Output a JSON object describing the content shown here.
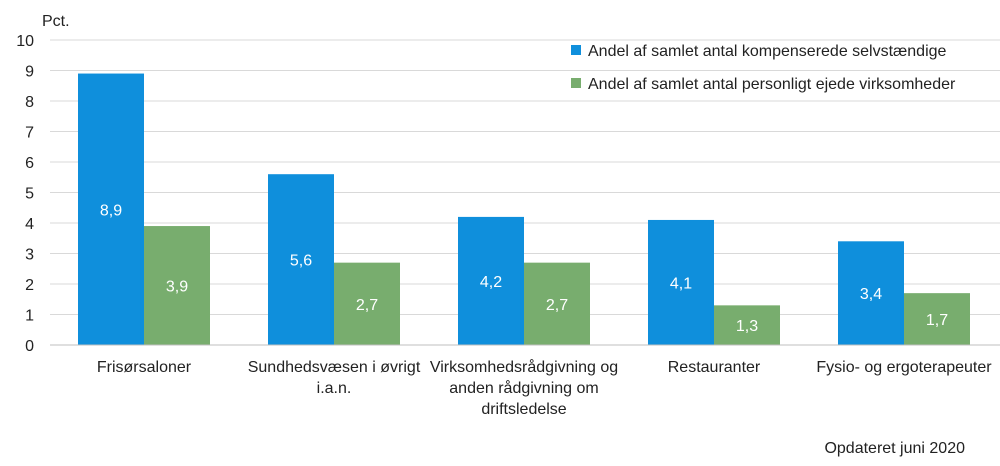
{
  "chart_data": {
    "type": "bar",
    "ylabel": "Pct.",
    "ylim": [
      0,
      10
    ],
    "yticks": [
      "0",
      "1",
      "2",
      "3",
      "4",
      "5",
      "6",
      "7",
      "8",
      "9",
      "10"
    ],
    "categories": [
      [
        "Frisørsaloner"
      ],
      [
        "Sundhedsvæsen i øvrigt",
        "i.a.n."
      ],
      [
        "Virksomhedsrådgivning og",
        "anden rådgivning om",
        "driftsledelse"
      ],
      [
        "Restauranter"
      ],
      [
        "Fysio- og ergoterapeuter"
      ]
    ],
    "series": [
      {
        "name": "Andel af samlet antal kompenserede selvstændige",
        "color": "#0f8fdc",
        "values": [
          8.9,
          5.6,
          4.2,
          4.1,
          3.4
        ],
        "labels": [
          "8,9",
          "5,6",
          "4,2",
          "4,1",
          "3,4"
        ]
      },
      {
        "name": "Andel af samlet antal personligt ejede virksomheder",
        "color": "#78ad6e",
        "values": [
          3.9,
          2.7,
          2.7,
          1.3,
          1.7
        ],
        "labels": [
          "3,9",
          "2,7",
          "2,7",
          "1,3",
          "1,7"
        ]
      }
    ],
    "gridlines": true,
    "legend_position": "top-right"
  },
  "footnote": "Opdateret juni 2020"
}
